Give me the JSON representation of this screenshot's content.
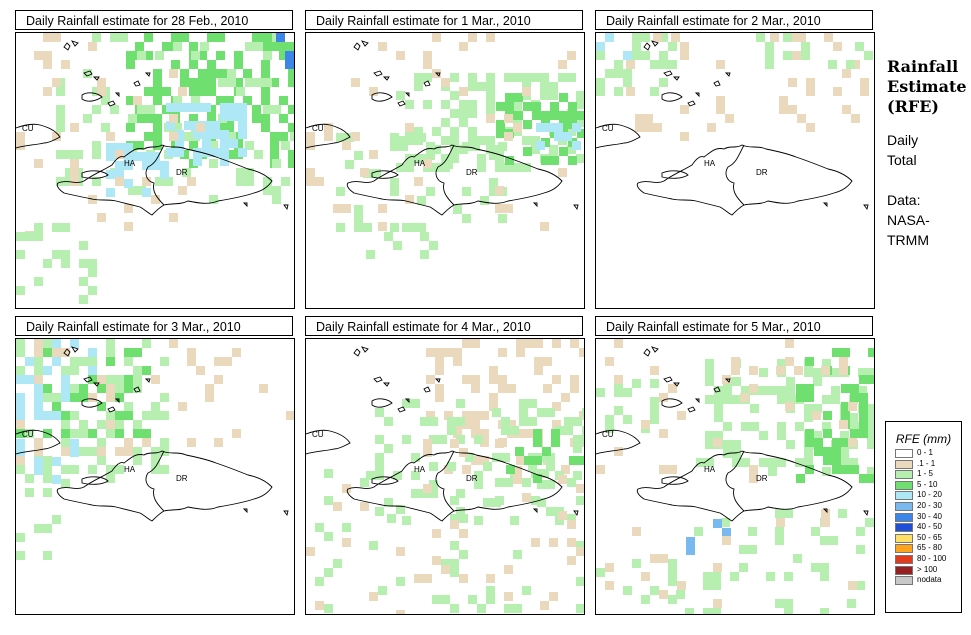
{
  "panels": [
    {
      "title": "Daily Rainfall estimate for  28 Feb., 2010"
    },
    {
      "title": "Daily Rainfall estimate for  1 Mar., 2010"
    },
    {
      "title": "Daily Rainfall estimate for  2 Mar., 2010"
    },
    {
      "title": "Daily Rainfall estimate for  3 Mar., 2010"
    },
    {
      "title": "Daily Rainfall estimate for  4 Mar., 2010"
    },
    {
      "title": "Daily Rainfall estimate for  5 Mar., 2010"
    }
  ],
  "map_labels": {
    "cuba": "CU",
    "haiti": "HA",
    "dominican_republic": "DR"
  },
  "sidebar": {
    "title_line1": "Rainfall",
    "title_line2": "Estimate",
    "title_line3": "(RFE)",
    "period_line1": "Daily",
    "period_line2": "Total",
    "source_line1": "Data:",
    "source_line2": "NASA-",
    "source_line3": "TRMM"
  },
  "legend": {
    "title": "RFE (mm)",
    "items": [
      {
        "label": "0 - 1",
        "color": "#ffffff"
      },
      {
        "label": ".1 - 1",
        "color": "#ead9bd"
      },
      {
        "label": "1 - 5",
        "color": "#b7efb0"
      },
      {
        "label": "5 - 10",
        "color": "#6fdf6f"
      },
      {
        "label": "10 - 20",
        "color": "#aee7f5"
      },
      {
        "label": "20 - 30",
        "color": "#78b9ef"
      },
      {
        "label": "30 - 40",
        "color": "#3c86ea"
      },
      {
        "label": "40 - 50",
        "color": "#1f4fd6"
      },
      {
        "label": "50 - 65",
        "color": "#ffe067"
      },
      {
        "label": "65 - 80",
        "color": "#ffa31a"
      },
      {
        "label": "80 - 100",
        "color": "#e33a1b"
      },
      {
        "label": "> 100",
        "color": "#962020"
      },
      {
        "label": "nodata",
        "color": "#c8c8c8"
      }
    ]
  }
}
